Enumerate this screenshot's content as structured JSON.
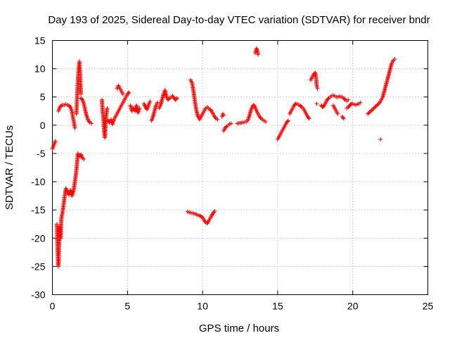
{
  "chart_data": {
    "type": "scatter",
    "title": "Day 193 of 2025, Sidereal Day-to-day VTEC variation (SDTVAR) for receiver bndr",
    "xlabel": "GPS time / hours",
    "ylabel": "SDTVAR / TECUs",
    "xlim": [
      0,
      25
    ],
    "ylim": [
      -30,
      15
    ],
    "xticks": [
      0,
      5,
      10,
      15,
      20,
      25
    ],
    "yticks": [
      -30,
      -25,
      -20,
      -15,
      -10,
      -5,
      0,
      5,
      10,
      15
    ],
    "grid": true,
    "marker": "+",
    "series": [
      {
        "name": "SDTVAR",
        "color": "#ff0000",
        "segments": [
          [
            [
              0.0,
              -4.2
            ],
            [
              0.1,
              -3.5
            ],
            [
              0.2,
              -2.8
            ]
          ],
          [
            [
              0.3,
              -17.5
            ],
            [
              0.35,
              -22
            ],
            [
              0.4,
              -25
            ],
            [
              0.45,
              -21
            ],
            [
              0.5,
              -18
            ],
            [
              0.55,
              -20
            ],
            [
              0.6,
              -16.5
            ],
            [
              0.7,
              -15
            ],
            [
              0.8,
              -13
            ],
            [
              0.9,
              -11.2
            ],
            [
              1.0,
              -11.8
            ],
            [
              1.1,
              -12.3
            ],
            [
              1.2,
              -11.5
            ],
            [
              1.3,
              -12.5
            ],
            [
              1.4,
              -11.8
            ],
            [
              1.5,
              -10
            ],
            [
              1.6,
              -8
            ],
            [
              1.7,
              -5
            ],
            [
              1.8,
              -5.5
            ],
            [
              1.9,
              -5.2
            ],
            [
              2.0,
              -5.8
            ],
            [
              2.1,
              -6.0
            ]
          ],
          [
            [
              0.4,
              2.5
            ],
            [
              0.5,
              3.2
            ],
            [
              0.6,
              3.5
            ],
            [
              0.7,
              3.6
            ],
            [
              0.8,
              3.6
            ],
            [
              0.9,
              3.7
            ],
            [
              1.0,
              3.6
            ],
            [
              1.1,
              3.5
            ],
            [
              1.2,
              3.2
            ],
            [
              1.3,
              2.5
            ],
            [
              1.4,
              1.0
            ],
            [
              1.5,
              -0.5
            ]
          ],
          [
            [
              1.6,
              2.0
            ],
            [
              1.65,
              5.0
            ],
            [
              1.7,
              8.0
            ],
            [
              1.75,
              10.0
            ],
            [
              1.8,
              11.3
            ],
            [
              1.85,
              9.0
            ],
            [
              1.9,
              5.5
            ]
          ],
          [
            [
              1.9,
              4.8
            ],
            [
              2.0,
              4.5
            ],
            [
              2.1,
              3.8
            ],
            [
              2.2,
              2.5
            ],
            [
              2.3,
              1.5
            ],
            [
              2.4,
              0.8
            ],
            [
              2.5,
              0.5
            ],
            [
              2.6,
              0.3
            ]
          ],
          [
            [
              3.3,
              4.5
            ],
            [
              3.35,
              2.5
            ],
            [
              3.4,
              1.0
            ],
            [
              3.45,
              -1.0
            ],
            [
              3.5,
              -2.2
            ],
            [
              3.55,
              0.5
            ],
            [
              3.6,
              2.0
            ],
            [
              3.65,
              3.0
            ]
          ],
          [
            [
              3.7,
              0.8
            ],
            [
              3.8,
              0.5
            ],
            [
              3.9,
              1.0
            ],
            [
              4.0,
              0.2
            ],
            [
              4.1,
              1.0
            ],
            [
              4.2,
              1.5
            ],
            [
              4.3,
              2.0
            ],
            [
              4.4,
              2.5
            ],
            [
              4.5,
              3.0
            ],
            [
              4.6,
              3.5
            ],
            [
              4.7,
              4.0
            ],
            [
              4.8,
              4.5
            ],
            [
              4.9,
              5.0
            ],
            [
              5.0,
              5.5
            ],
            [
              5.1,
              5.8
            ]
          ],
          [
            [
              4.3,
              6.5
            ],
            [
              4.4,
              7.0
            ],
            [
              4.5,
              6.5
            ],
            [
              4.6,
              6.0
            ],
            [
              4.7,
              5.5
            ]
          ],
          [
            [
              5.2,
              3.5
            ],
            [
              5.3,
              2.5
            ],
            [
              5.4,
              3.0
            ],
            [
              5.5,
              2.5
            ],
            [
              5.6,
              3.5
            ],
            [
              5.7,
              2.2
            ],
            [
              5.8,
              3.0
            ]
          ],
          [
            [
              6.1,
              3.8
            ],
            [
              6.2,
              3.2
            ],
            [
              6.3,
              2.8
            ],
            [
              6.4,
              3.5
            ],
            [
              6.5,
              4.2
            ]
          ],
          [
            [
              6.6,
              0.8
            ],
            [
              6.7,
              1.5
            ],
            [
              6.8,
              2.5
            ],
            [
              6.9,
              3.5
            ],
            [
              7.0,
              4.0
            ]
          ],
          [
            [
              7.1,
              3.0
            ],
            [
              7.2,
              3.5
            ],
            [
              7.3,
              4.5
            ],
            [
              7.4,
              5.5
            ],
            [
              7.5,
              6.2
            ],
            [
              7.6,
              5.0
            ],
            [
              7.7,
              4.5
            ],
            [
              7.8,
              4.8
            ],
            [
              7.9,
              5.0
            ],
            [
              8.0,
              5.2
            ],
            [
              8.1,
              4.8
            ],
            [
              8.2,
              4.5
            ],
            [
              8.3,
              4.8
            ]
          ],
          [
            [
              9.2,
              8.0
            ],
            [
              9.3,
              7.5
            ],
            [
              9.4,
              6.0
            ],
            [
              9.5,
              4.0
            ],
            [
              9.6,
              2.5
            ],
            [
              9.7,
              1.5
            ],
            [
              9.8,
              1.0
            ],
            [
              9.9,
              1.5
            ],
            [
              10.0,
              2.0
            ],
            [
              10.1,
              2.5
            ],
            [
              10.2,
              3.0
            ],
            [
              10.3,
              3.2
            ],
            [
              10.4,
              3.0
            ],
            [
              10.5,
              2.8
            ],
            [
              10.6,
              2.5
            ],
            [
              10.7,
              2.0
            ],
            [
              10.8,
              1.5
            ],
            [
              10.9,
              1.2
            ],
            [
              11.0,
              1.0
            ]
          ],
          [
            [
              9.0,
              -15.3
            ],
            [
              9.2,
              -15.5
            ],
            [
              9.4,
              -15.6
            ],
            [
              9.6,
              -15.8
            ],
            [
              9.8,
              -16.0
            ],
            [
              10.0,
              -16.3
            ],
            [
              10.1,
              -16.8
            ],
            [
              10.2,
              -17.2
            ],
            [
              10.3,
              -17.4
            ],
            [
              10.4,
              -17.0
            ],
            [
              10.5,
              -16.5
            ],
            [
              10.6,
              -16.0
            ],
            [
              10.7,
              -15.6
            ],
            [
              10.8,
              -15.2
            ]
          ],
          [
            [
              11.3,
              1.5
            ],
            [
              11.35,
              2.0
            ],
            [
              11.4,
              1.8
            ]
          ],
          [
            [
              11.4,
              -1.0
            ],
            [
              11.5,
              -0.5
            ],
            [
              11.6,
              -0.2
            ],
            [
              11.7,
              0.0
            ],
            [
              11.8,
              0.2
            ],
            [
              11.9,
              0.3
            ]
          ],
          [
            [
              12.3,
              0.3
            ],
            [
              12.5,
              0.4
            ],
            [
              12.7,
              0.5
            ],
            [
              12.9,
              0.6
            ],
            [
              13.0,
              0.8
            ],
            [
              13.1,
              1.5
            ],
            [
              13.2,
              2.5
            ],
            [
              13.3,
              3.2
            ],
            [
              13.4,
              3.6
            ],
            [
              13.5,
              3.2
            ],
            [
              13.6,
              2.5
            ],
            [
              13.7,
              2.0
            ],
            [
              13.8,
              1.5
            ],
            [
              13.9,
              1.2
            ],
            [
              14.0,
              1.0
            ],
            [
              14.1,
              0.8
            ],
            [
              14.2,
              0.6
            ]
          ],
          [
            [
              13.5,
              12.8
            ],
            [
              13.55,
              13.3
            ],
            [
              13.6,
              13.6
            ],
            [
              13.65,
              13.2
            ],
            [
              13.7,
              12.5
            ]
          ],
          [
            [
              15.0,
              -2.5
            ],
            [
              15.1,
              -2.0
            ],
            [
              15.2,
              -1.5
            ],
            [
              15.3,
              -1.0
            ],
            [
              15.4,
              -0.5
            ],
            [
              15.5,
              0.0
            ],
            [
              15.6,
              0.5
            ],
            [
              15.7,
              0.8
            ]
          ],
          [
            [
              15.8,
              2.0
            ],
            [
              15.9,
              2.5
            ],
            [
              16.0,
              3.0
            ],
            [
              16.1,
              3.5
            ],
            [
              16.2,
              3.8
            ],
            [
              16.3,
              3.8
            ],
            [
              16.4,
              3.6
            ],
            [
              16.5,
              3.5
            ],
            [
              16.6,
              3.2
            ],
            [
              16.7,
              3.0
            ],
            [
              16.8,
              2.5
            ],
            [
              16.9,
              2.0
            ],
            [
              17.0,
              1.5
            ],
            [
              17.1,
              1.2
            ]
          ],
          [
            [
              17.2,
              8.0
            ],
            [
              17.3,
              8.5
            ],
            [
              17.4,
              9.0
            ],
            [
              17.5,
              9.3
            ],
            [
              17.55,
              8.5
            ],
            [
              17.6,
              7.0
            ],
            [
              17.65,
              6.5
            ]
          ],
          [
            [
              17.6,
              3.8
            ]
          ],
          [
            [
              17.9,
              3.5
            ],
            [
              18.0,
              3.2
            ],
            [
              18.1,
              3.5
            ],
            [
              18.2,
              4.0
            ],
            [
              18.3,
              4.5
            ],
            [
              18.4,
              4.8
            ],
            [
              18.5,
              5.0
            ],
            [
              18.6,
              5.2
            ],
            [
              18.7,
              5.3
            ],
            [
              18.8,
              5.2
            ],
            [
              18.9,
              5.0
            ],
            [
              19.0,
              5.0
            ],
            [
              19.1,
              5.1
            ],
            [
              19.2,
              5.0
            ],
            [
              19.3,
              5.0
            ],
            [
              19.4,
              4.8
            ],
            [
              19.5,
              4.5
            ],
            [
              19.6,
              4.3
            ],
            [
              19.7,
              4.5
            ]
          ],
          [
            [
              18.7,
              3.5
            ],
            [
              18.8,
              3.0
            ],
            [
              18.9,
              2.5
            ],
            [
              19.0,
              2.0
            ]
          ],
          [
            [
              19.3,
              1.5
            ],
            [
              19.4,
              1.2
            ]
          ],
          [
            [
              19.6,
              3.0
            ],
            [
              19.7,
              3.2
            ],
            [
              19.8,
              3.5
            ],
            [
              19.9,
              3.8
            ],
            [
              20.0,
              3.8
            ],
            [
              20.2,
              3.6
            ],
            [
              20.4,
              3.8
            ],
            [
              20.5,
              4.0
            ]
          ],
          [
            [
              21.0,
              2.0
            ],
            [
              21.2,
              2.5
            ],
            [
              21.4,
              3.0
            ],
            [
              21.6,
              3.5
            ],
            [
              21.8,
              4.0
            ],
            [
              21.9,
              4.5
            ],
            [
              22.0,
              5.0
            ],
            [
              22.1,
              6.0
            ],
            [
              22.2,
              7.0
            ],
            [
              22.3,
              8.0
            ],
            [
              22.4,
              9.0
            ],
            [
              22.5,
              10.0
            ],
            [
              22.6,
              11.0
            ],
            [
              22.7,
              11.5
            ],
            [
              22.8,
              11.7
            ]
          ],
          [
            [
              21.85,
              -2.5
            ]
          ]
        ]
      }
    ]
  }
}
